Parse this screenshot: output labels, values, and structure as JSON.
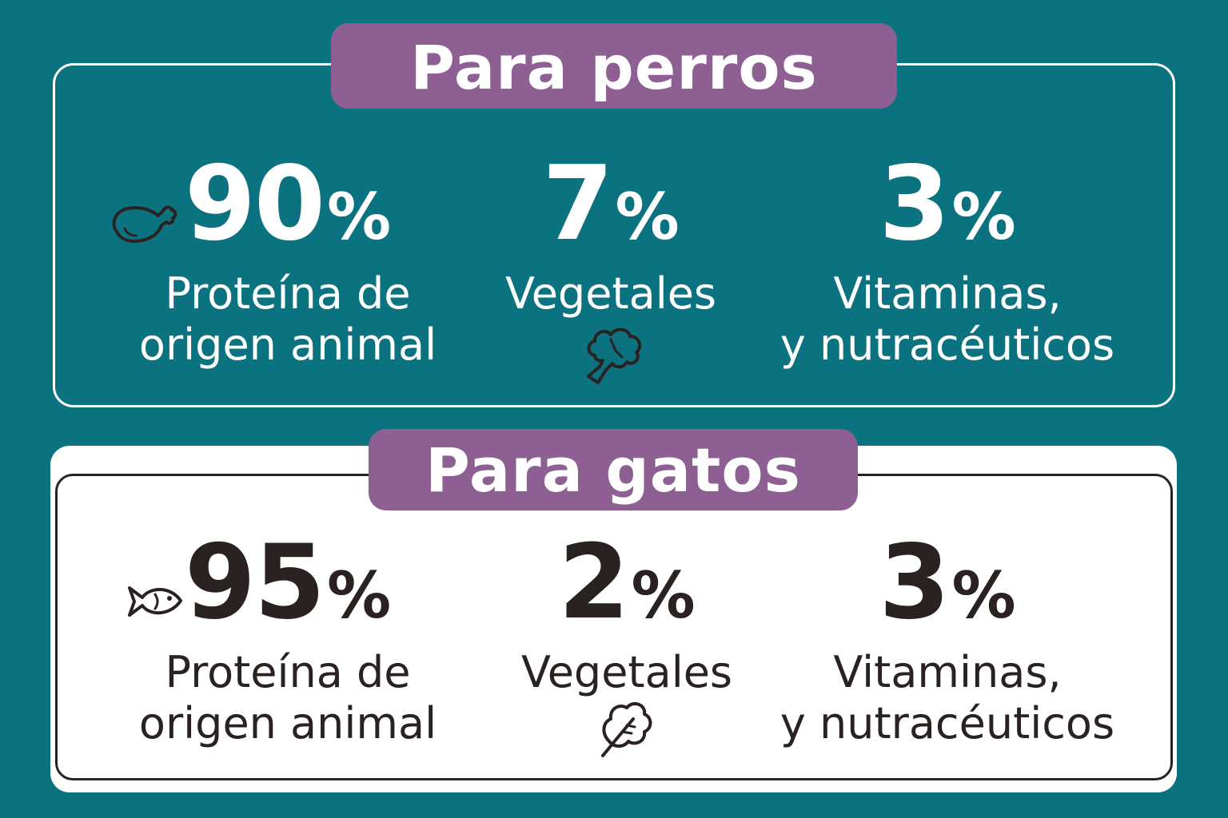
{
  "dogs": {
    "title": "Para perros",
    "stats": [
      {
        "value": "90",
        "unit": "%",
        "label_line1": "Proteína de",
        "label_line2": "origen animal",
        "icon": "chicken-leg-icon"
      },
      {
        "value": "7",
        "unit": "%",
        "label_line1": "Vegetales",
        "label_line2": "",
        "icon": "broccoli-icon"
      },
      {
        "value": "3",
        "unit": "%",
        "label_line1": "Vitaminas,",
        "label_line2": "y nutracéuticos",
        "icon": ""
      }
    ]
  },
  "cats": {
    "title": "Para gatos",
    "stats": [
      {
        "value": "95",
        "unit": "%",
        "label_line1": "Proteína de",
        "label_line2": "origen animal",
        "icon": "fish-icon"
      },
      {
        "value": "2",
        "unit": "%",
        "label_line1": "Vegetales",
        "label_line2": "",
        "icon": "leafy-green-icon"
      },
      {
        "value": "3",
        "unit": "%",
        "label_line1": "Vitaminas,",
        "label_line2": "y nutracéuticos",
        "icon": ""
      }
    ]
  },
  "colors": {
    "background": "#0b7280",
    "accent_pill": "#8e5f93",
    "light_text": "#ffffff",
    "dark_text": "#2a2220"
  }
}
